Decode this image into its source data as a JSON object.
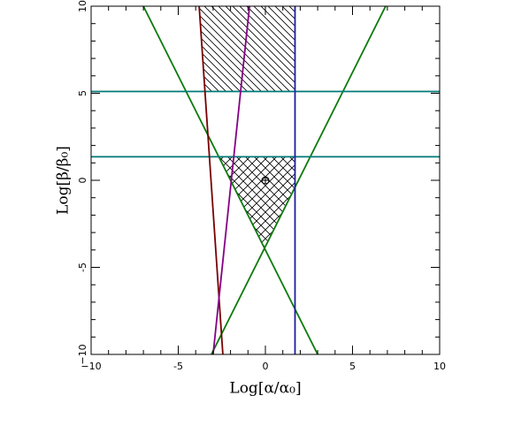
{
  "chart_data": {
    "type": "line",
    "xlabel": "Log[α/α₀]",
    "ylabel": "Log[β/β₀]",
    "xlim": [
      -10,
      10
    ],
    "ylim": [
      -10,
      10
    ],
    "xticks": [
      {
        "value": -10,
        "label": "−10"
      },
      -5,
      0,
      5,
      10
    ],
    "yticks": [
      {
        "value": -10,
        "label": "−10"
      },
      -5,
      0,
      5,
      10
    ],
    "minor_per_major": 5,
    "series": [
      {
        "color": "#0b7a0b",
        "x": [
          -7,
          3
        ],
        "values": [
          10,
          -10
        ]
      },
      {
        "color": "#0b7a0b",
        "x": [
          -3.1,
          6.9
        ],
        "values": [
          -10,
          10
        ]
      },
      {
        "color": "#007878",
        "x": [
          -10,
          10
        ],
        "values": [
          5.1,
          5.1
        ]
      },
      {
        "color": "#007878",
        "x": [
          -10,
          10
        ],
        "values": [
          1.35,
          1.35
        ]
      },
      {
        "color": "#1c1ca0",
        "x": [
          1.7,
          1.7
        ],
        "values": [
          -10,
          10
        ]
      },
      {
        "color": "#780000",
        "x": [
          -3.8,
          -2.44
        ],
        "values": [
          10,
          -10
        ]
      },
      {
        "color": "#850085",
        "x": [
          -0.91,
          -3.0
        ],
        "values": [
          10,
          -10
        ]
      }
    ],
    "regions": [
      {
        "hatch": "diagonal",
        "x": [
          -3.8,
          1.7,
          1.7,
          -3.47
        ],
        "values": [
          10,
          10,
          5.1,
          5.1
        ]
      },
      {
        "hatch": "cross",
        "x": [
          -2.675,
          1.7,
          1.7,
          -0.075
        ],
        "values": [
          1.35,
          1.35,
          -0.3,
          -3.85
        ]
      }
    ],
    "marker": {
      "x": 0,
      "value": 0
    }
  }
}
